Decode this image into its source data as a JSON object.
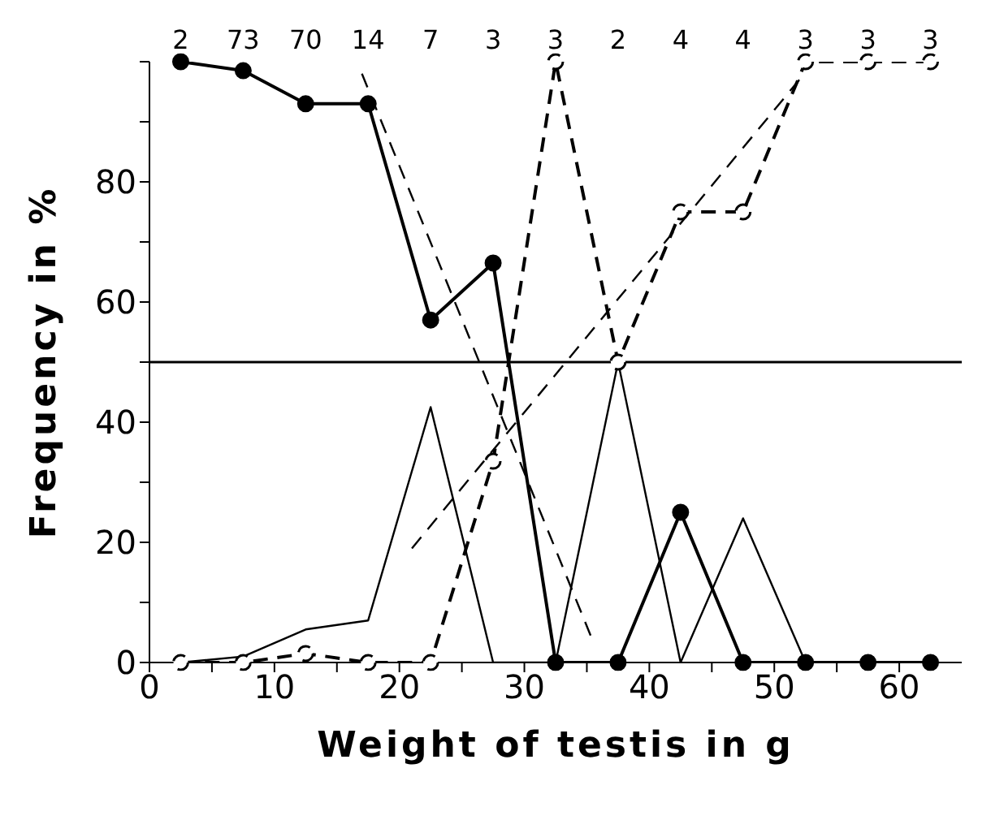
{
  "chart_data": {
    "type": "line",
    "xlabel": "Weight of testis in g",
    "ylabel": "Frequency in %",
    "xlim": [
      0,
      65
    ],
    "xticks": [
      0,
      {
        "value": 5,
        "label": null
      },
      10,
      {
        "value": 15,
        "label": null
      },
      20,
      {
        "value": 25,
        "label": null
      },
      30,
      {
        "value": 35,
        "label": null
      },
      40,
      {
        "value": 45,
        "label": null
      },
      50,
      {
        "value": 55,
        "label": null
      },
      60
    ],
    "ylim": [
      0,
      100
    ],
    "yticks": [
      0,
      {
        "value": 10,
        "label": null
      },
      20,
      {
        "value": 30,
        "label": null
      },
      40,
      {
        "value": 50,
        "label": null
      },
      60,
      {
        "value": 70,
        "label": null
      },
      80,
      {
        "value": 90,
        "label": null
      },
      {
        "value": 100,
        "label": null
      }
    ],
    "grid": false,
    "series": [
      {
        "color": "#000000",
        "marker": "circle",
        "line_style": "solid",
        "x": [
          2.5,
          7.5,
          12.5,
          17.5,
          22.5,
          27.5,
          32.5,
          37.5,
          42.5,
          47.5,
          52.5,
          57.5,
          62.5
        ],
        "values": [
          100,
          98.5,
          93,
          93,
          57,
          66.5,
          0,
          0,
          25,
          0,
          0,
          0,
          0
        ]
      },
      {
        "color": "#000000",
        "marker": "circle",
        "line_style": "dashed",
        "x": [
          2.5,
          7.5,
          12.5,
          17.5,
          22.5,
          27.5,
          32.5,
          37.5,
          42.5,
          47.5,
          52.5,
          57.5,
          62.5
        ],
        "values": [
          0,
          0,
          1.5,
          0,
          0,
          33.5,
          100,
          50,
          75,
          75,
          100,
          100,
          100
        ]
      },
      {
        "color": "#000000",
        "marker": "none",
        "line_style": "solid",
        "x": [
          2.5,
          7.5,
          12.5,
          17.5,
          22.5,
          27.5,
          32.5,
          37.5,
          42.5,
          47.5,
          52.5
        ],
        "values": [
          0,
          1,
          5.5,
          7,
          42.5,
          0,
          0,
          50,
          0,
          24,
          0
        ]
      },
      {
        "color": "#000000",
        "marker": "none",
        "line_style": "dashed",
        "x": [
          17,
          35.3
        ],
        "values": [
          98,
          4.5
        ]
      },
      {
        "color": "#000000",
        "marker": "none",
        "line_style": "dashed",
        "x": [
          21,
          52
        ],
        "values": [
          19,
          97
        ]
      }
    ],
    "ref_lines": [
      {
        "axis": "y",
        "value": 50
      }
    ],
    "annotations": [
      "2",
      "73",
      "70",
      "14",
      "7",
      "3",
      "3",
      "2",
      "4",
      "4",
      "3",
      "3",
      "3"
    ]
  }
}
